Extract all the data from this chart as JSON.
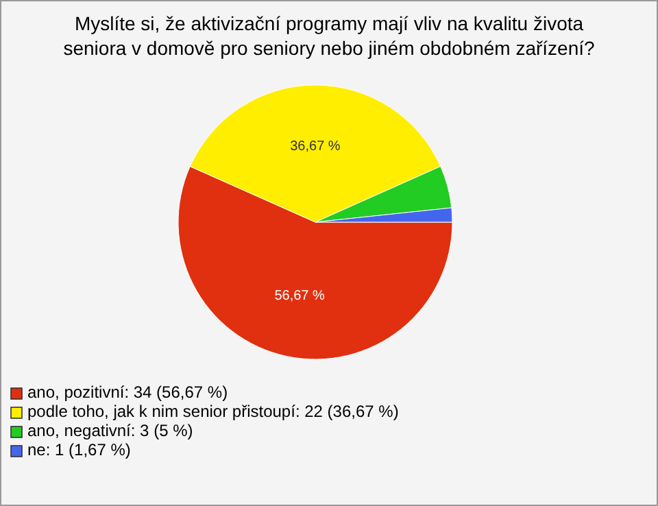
{
  "chart_data": {
    "type": "pie",
    "title": "Myslíte si, že aktivizační programy mají vliv na kvalitu života seniora v domově pro seniory nebo jiném obdobném zařízení?",
    "categories": [
      "ano, pozitivní: 34 (56,67 %)",
      "podle toho, jak k nim senior přistoupí: 22 (36,67 %)",
      "ano, negativní: 3 (5 %)",
      "ne: 1 (1,67 %)"
    ],
    "values": [
      56.67,
      36.67,
      5,
      1.67
    ],
    "colors": [
      "#e03010",
      "#ffee00",
      "#22cc22",
      "#4466ee"
    ],
    "value_labels": [
      "56,67 %",
      "36,67 %",
      null,
      null
    ],
    "legend": "bottom left"
  }
}
